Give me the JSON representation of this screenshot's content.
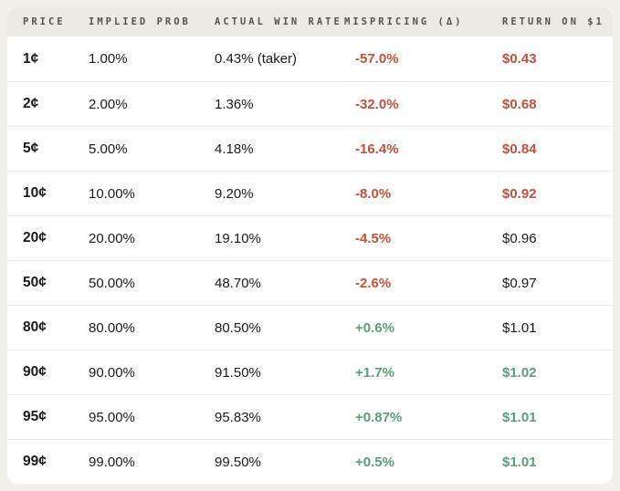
{
  "palette": {
    "page_background": "#F2F0EA",
    "card_background": "#FFFFFF",
    "header_background": "#ECEAE4",
    "header_text": "#56534D",
    "body_text": "#1B1B1B",
    "divider": "#EDEBE7",
    "negative": "#C5503C",
    "positive": "#58A078"
  },
  "chart_data": {
    "type": "table",
    "columns": [
      {
        "key": "price",
        "label": "PRICE"
      },
      {
        "key": "implied_prob",
        "label": "IMPLIED PROB"
      },
      {
        "key": "actual_win_rate",
        "label": "ACTUAL WIN RATE"
      },
      {
        "key": "mispricing",
        "label": "MISPRICING (Δ)"
      },
      {
        "key": "return_on_1",
        "label": "RETURN ON $1"
      }
    ],
    "rows": [
      {
        "price": "1¢",
        "implied_prob": "1.00%",
        "actual_win_rate": "0.43% (taker)",
        "mispricing": "-57.0%",
        "mispricing_tone": "negative",
        "return_on_1": "$0.43",
        "return_tone": "negative"
      },
      {
        "price": "2¢",
        "implied_prob": "2.00%",
        "actual_win_rate": "1.36%",
        "mispricing": "-32.0%",
        "mispricing_tone": "negative",
        "return_on_1": "$0.68",
        "return_tone": "negative"
      },
      {
        "price": "5¢",
        "implied_prob": "5.00%",
        "actual_win_rate": "4.18%",
        "mispricing": "-16.4%",
        "mispricing_tone": "negative",
        "return_on_1": "$0.84",
        "return_tone": "negative"
      },
      {
        "price": "10¢",
        "implied_prob": "10.00%",
        "actual_win_rate": "9.20%",
        "mispricing": "-8.0%",
        "mispricing_tone": "negative",
        "return_on_1": "$0.92",
        "return_tone": "negative"
      },
      {
        "price": "20¢",
        "implied_prob": "20.00%",
        "actual_win_rate": "19.10%",
        "mispricing": "-4.5%",
        "mispricing_tone": "negative",
        "return_on_1": "$0.96",
        "return_tone": "neutral"
      },
      {
        "price": "50¢",
        "implied_prob": "50.00%",
        "actual_win_rate": "48.70%",
        "mispricing": "-2.6%",
        "mispricing_tone": "negative",
        "return_on_1": "$0.97",
        "return_tone": "neutral"
      },
      {
        "price": "80¢",
        "implied_prob": "80.00%",
        "actual_win_rate": "80.50%",
        "mispricing": "+0.6%",
        "mispricing_tone": "positive",
        "return_on_1": "$1.01",
        "return_tone": "neutral"
      },
      {
        "price": "90¢",
        "implied_prob": "90.00%",
        "actual_win_rate": "91.50%",
        "mispricing": "+1.7%",
        "mispricing_tone": "positive",
        "return_on_1": "$1.02",
        "return_tone": "positive"
      },
      {
        "price": "95¢",
        "implied_prob": "95.00%",
        "actual_win_rate": "95.83%",
        "mispricing": "+0.87%",
        "mispricing_tone": "positive",
        "return_on_1": "$1.01",
        "return_tone": "positive"
      },
      {
        "price": "99¢",
        "implied_prob": "99.00%",
        "actual_win_rate": "99.50%",
        "mispricing": "+0.5%",
        "mispricing_tone": "positive",
        "return_on_1": "$1.01",
        "return_tone": "positive"
      }
    ]
  }
}
